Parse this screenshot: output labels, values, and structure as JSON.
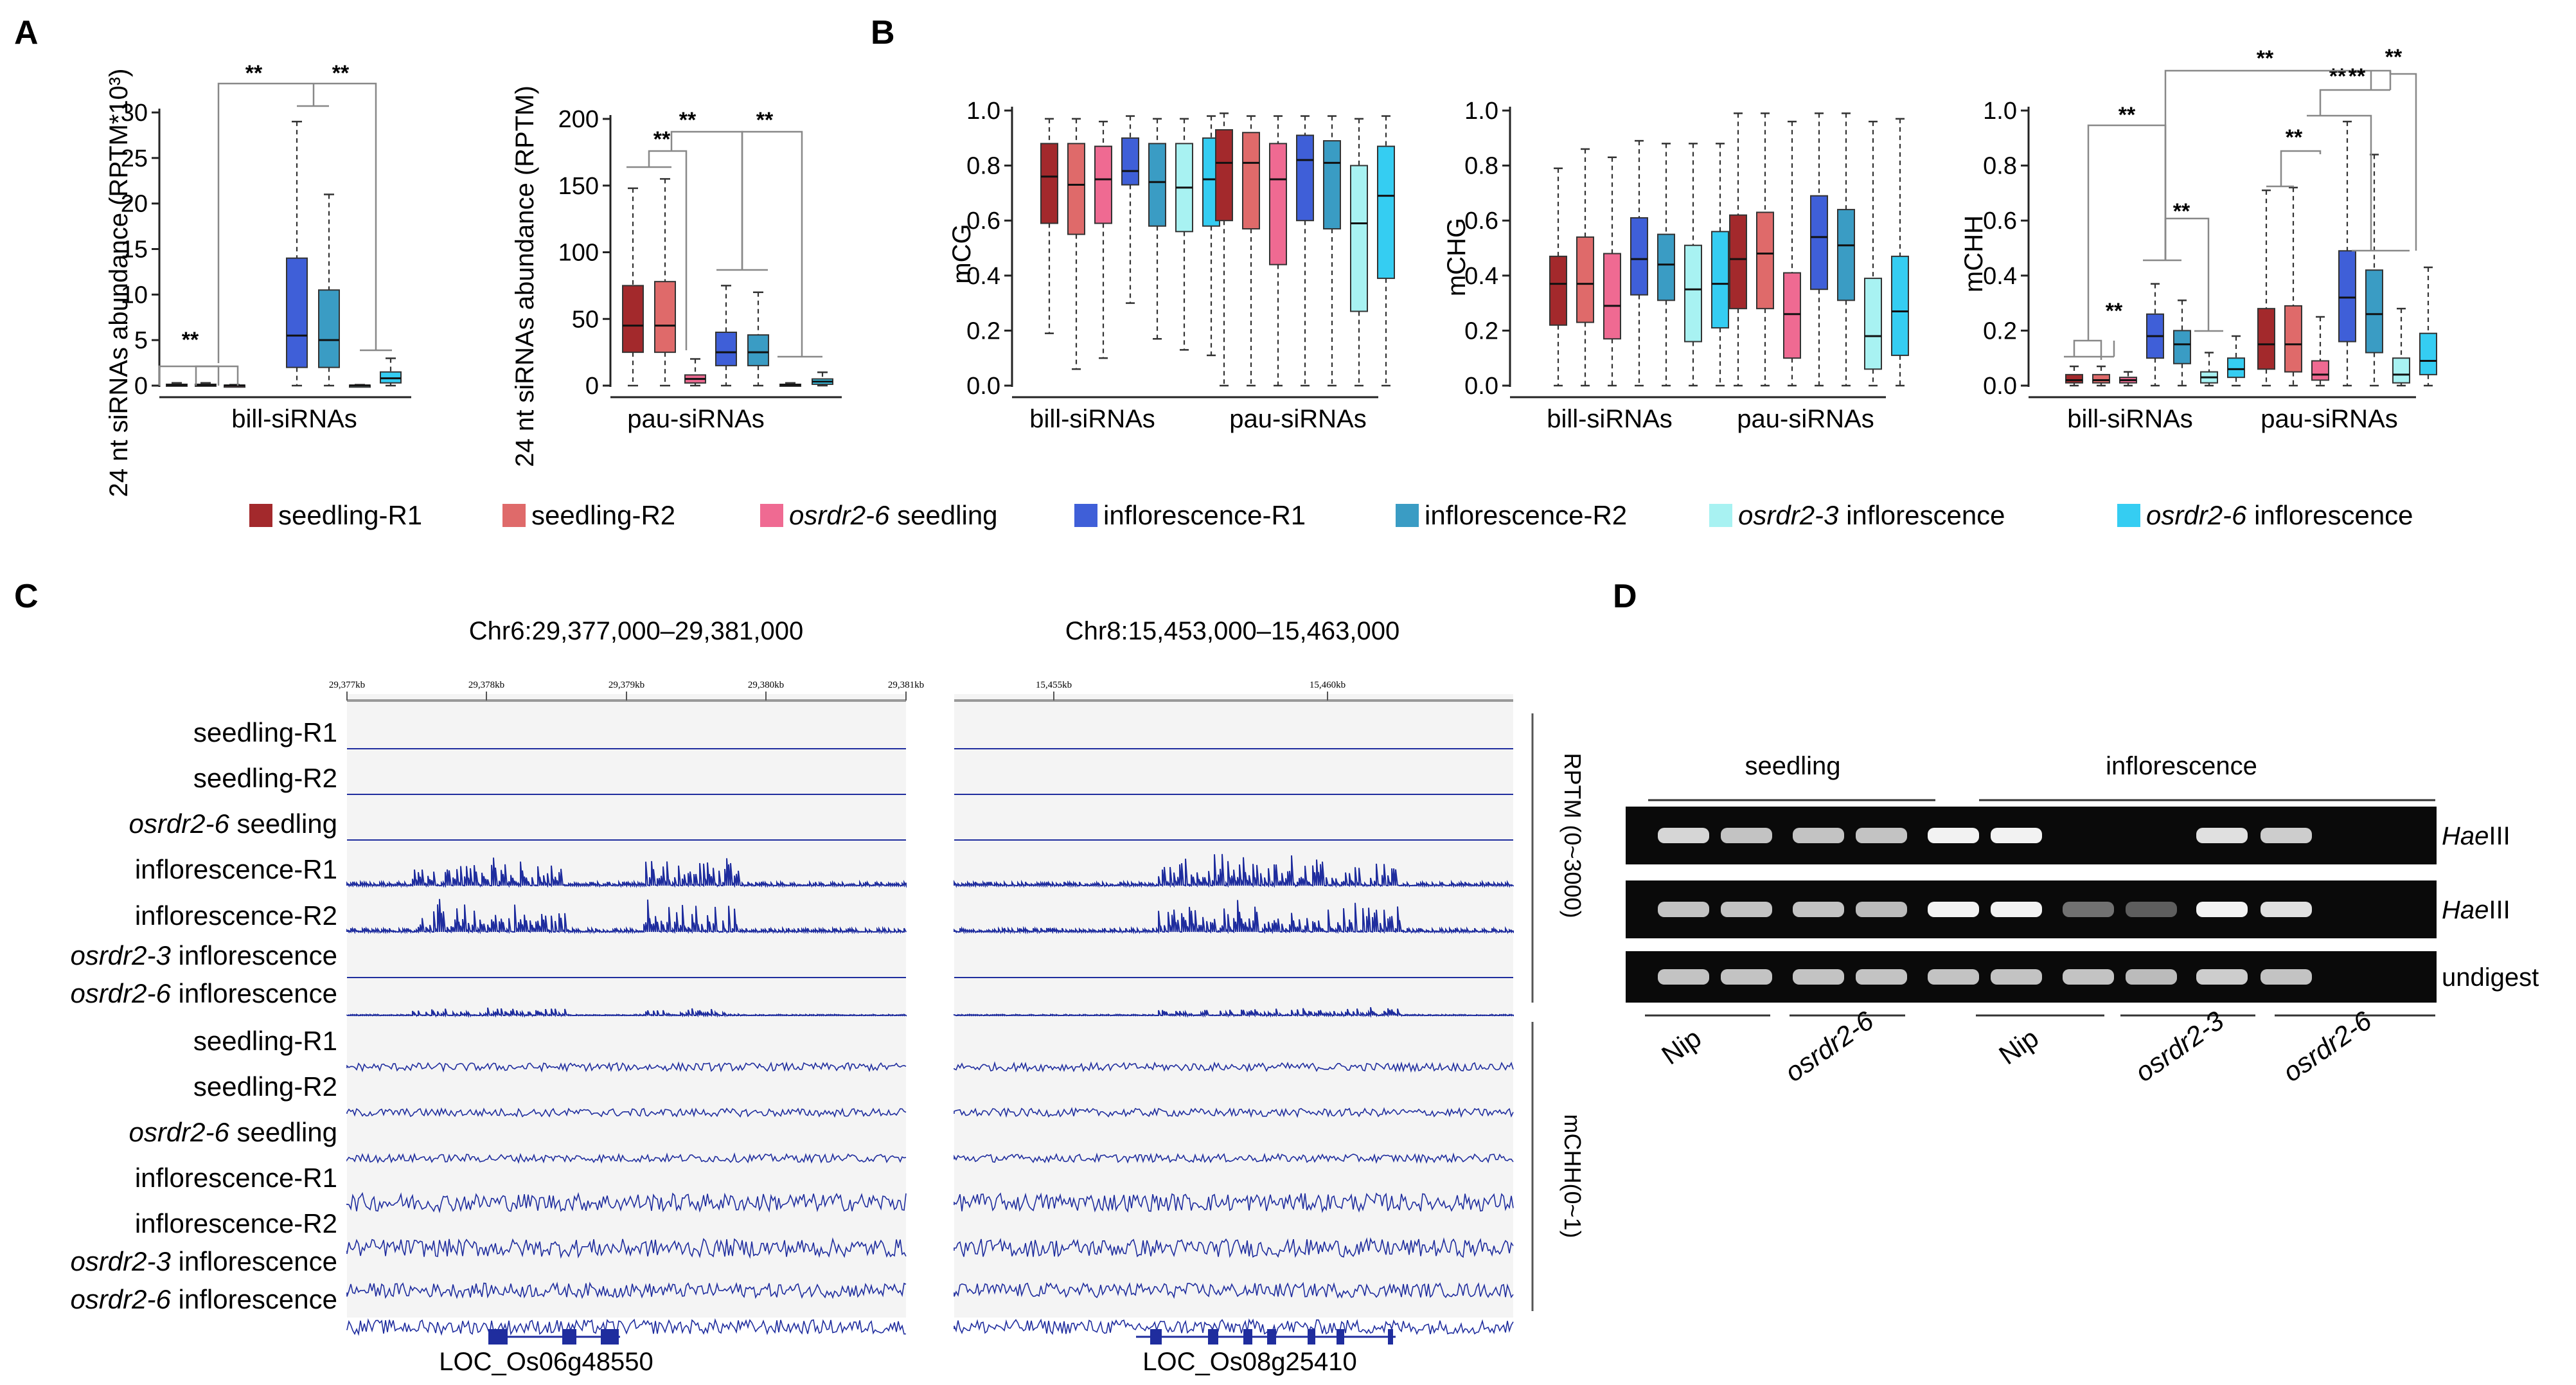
{
  "panels": {
    "a": "A",
    "b": "B",
    "c": "C",
    "d": "D"
  },
  "colors": {
    "seedling_r1": "#a3292c",
    "seedling_r2": "#df6a6a",
    "osrdr2_6_seedling": "#ef6a92",
    "infl_r1": "#3f5fd8",
    "infl_r2": "#3a9cc4",
    "osrdr2_3_infl": "#a8f2f2",
    "osrdr2_6_infl": "#35cdf2",
    "track": "#1f2d9e",
    "gel_band": "#ffffff"
  },
  "legend": [
    {
      "key": "seedling_r1",
      "label": "seedling-R1",
      "italic": "",
      "rest": "seedling-R1"
    },
    {
      "key": "seedling_r2",
      "label": "seedling-R2",
      "italic": "",
      "rest": "seedling-R2"
    },
    {
      "key": "osrdr2_6_seedling",
      "label": "osrdr2-6 seedling",
      "italic": "osrdr2-6",
      "rest": " seedling"
    },
    {
      "key": "infl_r1",
      "label": "inflorescence-R1",
      "italic": "",
      "rest": "inflorescence-R1"
    },
    {
      "key": "infl_r2",
      "label": "inflorescence-R2",
      "italic": "",
      "rest": "inflorescence-R2"
    },
    {
      "key": "osrdr2_3_infl",
      "label": "osrdr2-3 inflorescence",
      "italic": "osrdr2-3",
      "rest": " inflorescence"
    },
    {
      "key": "osrdr2_6_infl",
      "label": "osrdr2-6 inflorescence",
      "italic": "osrdr2-6",
      "rest": " inflorescence"
    }
  ],
  "panel_a": {
    "chart1": {
      "ylabel": "24 nt siRNAs abundance (RPTM*10³)",
      "xlabel": "bill-siRNAs",
      "yticks": [
        "30",
        "25",
        "20",
        "15",
        "10",
        "5",
        "0"
      ],
      "ylim": [
        0,
        30
      ]
    },
    "chart2": {
      "ylabel": "24 nt siRNAs abundance (RPTM)",
      "xlabel": "pau-siRNAs",
      "yticks": [
        "200",
        "150",
        "100",
        "50",
        "0"
      ],
      "ylim": [
        0,
        200
      ]
    },
    "sig": "**"
  },
  "panel_b": {
    "mcg": {
      "ylabel": "mCG",
      "yticks": [
        "1.0",
        "0.8",
        "0.6",
        "0.4",
        "0.2",
        "0.0"
      ]
    },
    "mchg": {
      "ylabel": "mCHG",
      "yticks": [
        "1.0",
        "0.8",
        "0.6",
        "0.4",
        "0.2",
        "0.0"
      ]
    },
    "mchh": {
      "ylabel": "mCHH",
      "yticks": [
        "1.0",
        "0.8",
        "0.6",
        "0.4",
        "0.2",
        "0.0"
      ]
    },
    "group_labels": [
      "bill-siRNAs",
      "pau-siRNAs"
    ],
    "sig": "**"
  },
  "chart_data": [
    {
      "type": "box",
      "id": "A1",
      "title": "",
      "ylabel": "24 nt siRNAs abundance (RPTM*10³)",
      "xlabel": "bill-siRNAs",
      "ylim": [
        0,
        30
      ],
      "series": [
        "seedling-R1",
        "seedling-R2",
        "osrdr2-6 seedling",
        "inflorescence-R1",
        "inflorescence-R2",
        "osrdr2-3 inflorescence",
        "osrdr2-6 inflorescence"
      ],
      "boxes": [
        {
          "min": 0,
          "q1": 0,
          "med": 0.05,
          "q3": 0.15,
          "max": 0.3
        },
        {
          "min": 0,
          "q1": 0,
          "med": 0.05,
          "q3": 0.15,
          "max": 0.3
        },
        {
          "min": 0,
          "q1": 0,
          "med": 0.02,
          "q3": 0.05,
          "max": 0.1
        },
        {
          "min": 0,
          "q1": 2,
          "med": 5.5,
          "q3": 14,
          "max": 29
        },
        {
          "min": 0,
          "q1": 2,
          "med": 5,
          "q3": 10.5,
          "max": 21
        },
        {
          "min": 0,
          "q1": 0,
          "med": 0.02,
          "q3": 0.05,
          "max": 0.1
        },
        {
          "min": 0,
          "q1": 0.3,
          "med": 0.8,
          "q3": 1.5,
          "max": 3
        }
      ]
    },
    {
      "type": "box",
      "id": "A2",
      "ylabel": "24 nt siRNAs abundance (RPTM)",
      "xlabel": "pau-siRNAs",
      "ylim": [
        0,
        200
      ],
      "boxes": [
        {
          "min": 0,
          "q1": 25,
          "med": 45,
          "q3": 75,
          "max": 148
        },
        {
          "min": 0,
          "q1": 25,
          "med": 45,
          "q3": 78,
          "max": 155
        },
        {
          "min": 0,
          "q1": 2,
          "med": 5,
          "q3": 8,
          "max": 20
        },
        {
          "min": 0,
          "q1": 15,
          "med": 25,
          "q3": 40,
          "max": 75
        },
        {
          "min": 0,
          "q1": 15,
          "med": 25,
          "q3": 38,
          "max": 70
        },
        {
          "min": 0,
          "q1": 0,
          "med": 0.5,
          "q3": 1,
          "max": 2
        },
        {
          "min": 0,
          "q1": 1,
          "med": 3,
          "q3": 5,
          "max": 10
        }
      ]
    },
    {
      "type": "box",
      "id": "B_mCG",
      "ylabel": "mCG",
      "ylim": [
        0,
        1
      ],
      "groups": [
        "bill-siRNAs",
        "pau-siRNAs"
      ],
      "boxes": [
        [
          {
            "min": 0.19,
            "q1": 0.59,
            "med": 0.76,
            "q3": 0.88,
            "max": 0.97
          },
          {
            "min": 0.06,
            "q1": 0.55,
            "med": 0.73,
            "q3": 0.88,
            "max": 0.97
          },
          {
            "min": 0.1,
            "q1": 0.59,
            "med": 0.75,
            "q3": 0.87,
            "max": 0.96
          },
          {
            "min": 0.3,
            "q1": 0.73,
            "med": 0.78,
            "q3": 0.9,
            "max": 0.98
          },
          {
            "min": 0.17,
            "q1": 0.58,
            "med": 0.74,
            "q3": 0.88,
            "max": 0.97
          },
          {
            "min": 0.13,
            "q1": 0.56,
            "med": 0.72,
            "q3": 0.88,
            "max": 0.97
          },
          {
            "min": 0.11,
            "q1": 0.58,
            "med": 0.75,
            "q3": 0.9,
            "max": 0.98
          }
        ],
        [
          {
            "min": 0,
            "q1": 0.6,
            "med": 0.81,
            "q3": 0.93,
            "max": 0.99
          },
          {
            "min": 0,
            "q1": 0.57,
            "med": 0.81,
            "q3": 0.92,
            "max": 0.98
          },
          {
            "min": 0,
            "q1": 0.44,
            "med": 0.75,
            "q3": 0.88,
            "max": 0.98
          },
          {
            "min": 0,
            "q1": 0.6,
            "med": 0.82,
            "q3": 0.91,
            "max": 0.98
          },
          {
            "min": 0,
            "q1": 0.57,
            "med": 0.81,
            "q3": 0.89,
            "max": 0.98
          },
          {
            "min": 0,
            "q1": 0.27,
            "med": 0.59,
            "q3": 0.8,
            "max": 0.97
          },
          {
            "min": 0,
            "q1": 0.39,
            "med": 0.69,
            "q3": 0.87,
            "max": 0.98
          }
        ]
      ]
    },
    {
      "type": "box",
      "id": "B_mCHG",
      "ylabel": "mCHG",
      "ylim": [
        0,
        1
      ],
      "groups": [
        "bill-siRNAs",
        "pau-siRNAs"
      ],
      "boxes": [
        [
          {
            "min": 0,
            "q1": 0.22,
            "med": 0.37,
            "q3": 0.47,
            "max": 0.79
          },
          {
            "min": 0,
            "q1": 0.23,
            "med": 0.37,
            "q3": 0.54,
            "max": 0.86
          },
          {
            "min": 0,
            "q1": 0.17,
            "med": 0.29,
            "q3": 0.48,
            "max": 0.83
          },
          {
            "min": 0,
            "q1": 0.33,
            "med": 0.46,
            "q3": 0.61,
            "max": 0.89
          },
          {
            "min": 0,
            "q1": 0.31,
            "med": 0.44,
            "q3": 0.55,
            "max": 0.88
          },
          {
            "min": 0,
            "q1": 0.16,
            "med": 0.35,
            "q3": 0.51,
            "max": 0.88
          },
          {
            "min": 0,
            "q1": 0.21,
            "med": 0.37,
            "q3": 0.56,
            "max": 0.88
          }
        ],
        [
          {
            "min": 0,
            "q1": 0.28,
            "med": 0.46,
            "q3": 0.62,
            "max": 0.99
          },
          {
            "min": 0,
            "q1": 0.28,
            "med": 0.48,
            "q3": 0.63,
            "max": 0.99
          },
          {
            "min": 0,
            "q1": 0.1,
            "med": 0.26,
            "q3": 0.41,
            "max": 0.96
          },
          {
            "min": 0,
            "q1": 0.35,
            "med": 0.54,
            "q3": 0.69,
            "max": 0.99
          },
          {
            "min": 0,
            "q1": 0.31,
            "med": 0.51,
            "q3": 0.64,
            "max": 0.99
          },
          {
            "min": 0,
            "q1": 0.06,
            "med": 0.18,
            "q3": 0.39,
            "max": 0.96
          },
          {
            "min": 0,
            "q1": 0.11,
            "med": 0.27,
            "q3": 0.47,
            "max": 0.97
          }
        ]
      ]
    },
    {
      "type": "box",
      "id": "B_mCHH",
      "ylabel": "mCHH",
      "ylim": [
        0,
        1
      ],
      "groups": [
        "bill-siRNAs",
        "pau-siRNAs"
      ],
      "boxes": [
        [
          {
            "min": 0,
            "q1": 0.01,
            "med": 0.02,
            "q3": 0.04,
            "max": 0.07
          },
          {
            "min": 0,
            "q1": 0.01,
            "med": 0.02,
            "q3": 0.04,
            "max": 0.07
          },
          {
            "min": 0,
            "q1": 0.01,
            "med": 0.02,
            "q3": 0.03,
            "max": 0.05
          },
          {
            "min": 0,
            "q1": 0.1,
            "med": 0.18,
            "q3": 0.26,
            "max": 0.37
          },
          {
            "min": 0,
            "q1": 0.08,
            "med": 0.15,
            "q3": 0.2,
            "max": 0.31
          },
          {
            "min": 0,
            "q1": 0.01,
            "med": 0.03,
            "q3": 0.05,
            "max": 0.12
          },
          {
            "min": 0,
            "q1": 0.03,
            "med": 0.06,
            "q3": 0.1,
            "max": 0.18
          }
        ],
        [
          {
            "min": 0,
            "q1": 0.06,
            "med": 0.15,
            "q3": 0.28,
            "max": 0.71
          },
          {
            "min": 0,
            "q1": 0.05,
            "med": 0.15,
            "q3": 0.29,
            "max": 0.72
          },
          {
            "min": 0,
            "q1": 0.02,
            "med": 0.04,
            "q3": 0.09,
            "max": 0.25
          },
          {
            "min": 0,
            "q1": 0.16,
            "med": 0.32,
            "q3": 0.49,
            "max": 0.96
          },
          {
            "min": 0,
            "q1": 0.12,
            "med": 0.26,
            "q3": 0.42,
            "max": 0.84
          },
          {
            "min": 0,
            "q1": 0.01,
            "med": 0.04,
            "q3": 0.1,
            "max": 0.28
          },
          {
            "min": 0,
            "q1": 0.04,
            "med": 0.09,
            "q3": 0.19,
            "max": 0.43
          }
        ]
      ]
    }
  ],
  "panel_c": {
    "region1": "Chr6:29,377,000–29,381,000",
    "region2": "Chr8:15,453,000–15,463,000",
    "ruler1": [
      "29,377kb",
      "29,378kb",
      "29,379kb",
      "29,380kb",
      "29,381kb"
    ],
    "ruler2": [
      "15,455kb",
      "15,460kb"
    ],
    "rows": [
      {
        "italic": "",
        "rest": "seedling-R1",
        "label": "seedling-R1"
      },
      {
        "italic": "",
        "rest": "seedling-R2",
        "label": "seedling-R2"
      },
      {
        "italic": "osrdr2-6",
        "rest": " seedling",
        "label": "osrdr2-6 seedling"
      },
      {
        "italic": "",
        "rest": "inflorescence-R1",
        "label": "inflorescence-R1"
      },
      {
        "italic": "",
        "rest": "inflorescence-R2",
        "label": "inflorescence-R2"
      },
      {
        "italic": "osrdr2-3",
        "rest": " inflorescence",
        "label": "osrdr2-3 inflorescence"
      },
      {
        "italic": "osrdr2-6",
        "rest": " inflorescence",
        "label": "osrdr2-6 inflorescence"
      },
      {
        "italic": "",
        "rest": "seedling-R1",
        "label": "seedling-R1"
      },
      {
        "italic": "",
        "rest": "seedling-R2",
        "label": "seedling-R2"
      },
      {
        "italic": "osrdr2-6",
        "rest": " seedling",
        "label": "osrdr2-6 seedling"
      },
      {
        "italic": "",
        "rest": "inflorescence-R1",
        "label": "inflorescence-R1"
      },
      {
        "italic": "",
        "rest": "inflorescence-R2",
        "label": "inflorescence-R2"
      },
      {
        "italic": "osrdr2-3",
        "rest": " inflorescence",
        "label": "osrdr2-3 inflorescence"
      },
      {
        "italic": "osrdr2-6",
        "rest": " inflorescence",
        "label": "osrdr2-6 inflorescence"
      }
    ],
    "scale_rptm": "RPTM (0~3000)",
    "scale_mchh": "mCHH(0~1)",
    "gene1": "LOC_Os06g48550",
    "gene2": "LOC_Os08g25410"
  },
  "panel_d": {
    "group_seedling": "seedling",
    "group_inflorescence": "inflorescence",
    "row_labels": [
      {
        "italic": "Hae",
        "rest": "III",
        "label": "HaeIII"
      },
      {
        "italic": "Hae",
        "rest": "III",
        "label": "HaeIII"
      },
      {
        "italic": "",
        "rest": "undigest",
        "label": "undigest"
      }
    ],
    "lane_labels": [
      {
        "text": "Nip",
        "italic": false
      },
      {
        "text": "osrdr2-6",
        "italic": true
      },
      {
        "text": "Nip",
        "italic": false
      },
      {
        "text": "osrdr2-3",
        "italic": true
      },
      {
        "text": "osrdr2-6",
        "italic": true
      }
    ],
    "band_intensity": [
      [
        0.85,
        0.75,
        0.75,
        0.75,
        1.0,
        1.0,
        0,
        0,
        0.9,
        0.8
      ],
      [
        0.75,
        0.75,
        0.75,
        0.7,
        1.0,
        1.0,
        0.3,
        0.2,
        1.0,
        0.9
      ],
      [
        0.75,
        0.75,
        0.75,
        0.75,
        0.75,
        0.75,
        0.75,
        0.7,
        0.8,
        0.75
      ]
    ]
  }
}
